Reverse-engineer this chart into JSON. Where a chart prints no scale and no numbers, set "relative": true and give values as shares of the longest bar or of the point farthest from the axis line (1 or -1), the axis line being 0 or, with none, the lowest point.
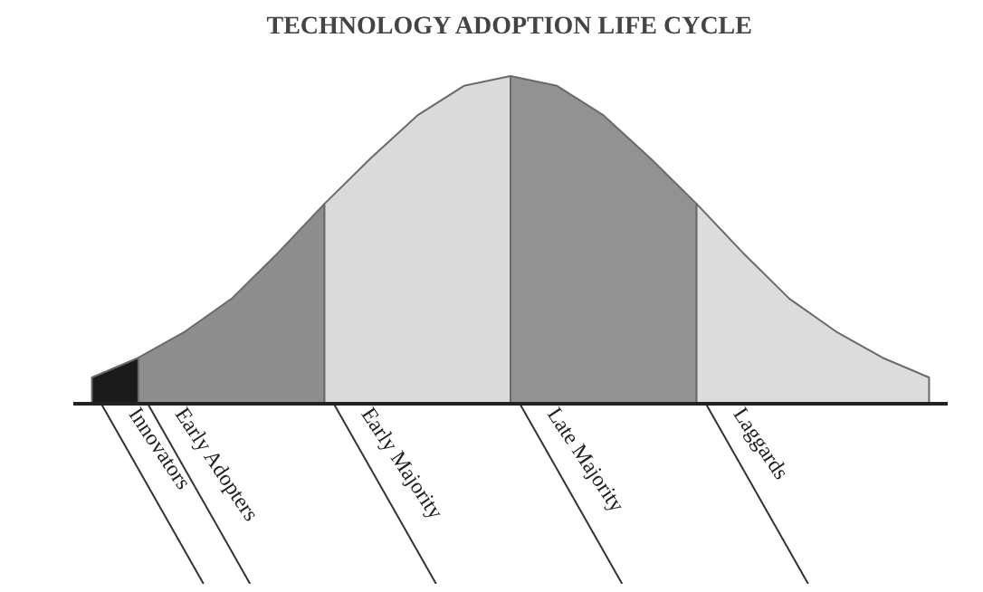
{
  "chart_data": {
    "type": "area",
    "title": "TECHNOLOGY ADOPTION LIFE CYCLE",
    "relative": true,
    "tick_labels": false,
    "categories": [
      null,
      null,
      null,
      null,
      null,
      null,
      null,
      null,
      null,
      null,
      null,
      null,
      null,
      null,
      null,
      null,
      null,
      null,
      null
    ],
    "series": [
      {
        "name": "Innovators",
        "color": "#1a1a1a",
        "values": [
          0.08,
          0.14,
          null,
          null,
          null,
          null,
          null,
          null,
          null,
          null,
          null,
          null,
          null,
          null,
          null,
          null,
          null,
          null,
          null
        ]
      },
      {
        "name": "Early Adopters",
        "color": "#8e8e8e",
        "values": [
          null,
          0.14,
          0.22,
          0.32,
          0.46,
          0.61,
          null,
          null,
          null,
          null,
          null,
          null,
          null,
          null,
          null,
          null,
          null,
          null,
          null
        ]
      },
      {
        "name": "Early Majority",
        "color": "#dadada",
        "values": [
          null,
          null,
          null,
          null,
          null,
          0.61,
          0.75,
          0.88,
          0.97,
          1.0,
          null,
          null,
          null,
          null,
          null,
          null,
          null,
          null,
          null
        ]
      },
      {
        "name": "Late Majority",
        "color": "#929292",
        "values": [
          null,
          null,
          null,
          null,
          null,
          null,
          null,
          null,
          null,
          1.0,
          0.97,
          0.88,
          0.75,
          0.61,
          null,
          null,
          null,
          null,
          null
        ]
      },
      {
        "name": "Laggards",
        "color": "#dcdcdc",
        "values": [
          null,
          null,
          null,
          null,
          null,
          null,
          null,
          null,
          null,
          null,
          null,
          null,
          null,
          0.61,
          0.46,
          0.32,
          0.22,
          0.14,
          0.08
        ]
      }
    ]
  }
}
